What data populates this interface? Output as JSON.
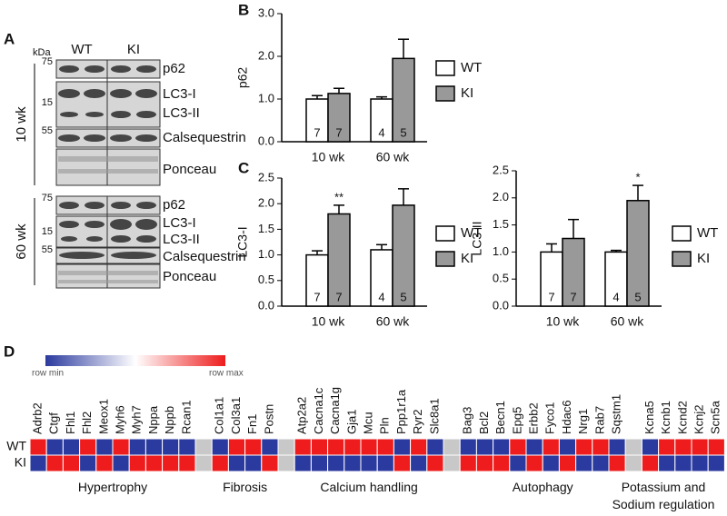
{
  "panels": [
    "A",
    "B",
    "C",
    "D"
  ],
  "blot": {
    "unit": "kDa",
    "lanes": [
      "WT",
      "KI"
    ],
    "markers": [
      "75",
      "15",
      "55",
      "75",
      "15",
      "55"
    ],
    "ages": [
      "10 wk",
      "60 wk"
    ],
    "bands": [
      "p62",
      "LC3-I",
      "LC3-II",
      "Calsequestrin",
      "Ponceau",
      "p62",
      "LC3-I",
      "LC3-II",
      "Calsequestrin",
      "Ponceau"
    ]
  },
  "chart_data": [
    {
      "type": "bar",
      "ylabel": "p62",
      "categories": [
        "10 wk",
        "60 wk"
      ],
      "ylim": [
        0,
        3
      ],
      "yticks": [
        {
          "value": 0,
          "label": "0.0"
        },
        {
          "value": 1,
          "label": "1.0"
        },
        {
          "value": 2,
          "label": "2.0"
        },
        {
          "value": 3,
          "label": "3.0"
        }
      ],
      "series": [
        {
          "name": "WT",
          "color": "#ffffff",
          "values": [
            1.0,
            1.0
          ],
          "errors": [
            0.08,
            0.05
          ],
          "n": [
            7,
            4
          ],
          "sig": [
            null,
            null
          ]
        },
        {
          "name": "KI",
          "color": "#999999",
          "values": [
            1.13,
            1.95
          ],
          "errors": [
            0.12,
            0.45
          ],
          "n": [
            7,
            5
          ],
          "sig": [
            null,
            null
          ]
        }
      ]
    },
    {
      "type": "bar",
      "ylabel": "LC3-I",
      "categories": [
        "10 wk",
        "60 wk"
      ],
      "ylim": [
        0,
        2.5
      ],
      "yticks": [
        {
          "value": 0,
          "label": "0.0"
        },
        {
          "value": 0.5,
          "label": "0.5"
        },
        {
          "value": 1,
          "label": "1.0"
        },
        {
          "value": 1.5,
          "label": "1.5"
        },
        {
          "value": 2,
          "label": "2.0"
        },
        {
          "value": 2.5,
          "label": "2.5"
        }
      ],
      "series": [
        {
          "name": "WT",
          "color": "#ffffff",
          "values": [
            1.0,
            1.1
          ],
          "errors": [
            0.08,
            0.1
          ],
          "n": [
            7,
            4
          ],
          "sig": [
            null,
            null
          ]
        },
        {
          "name": "KI",
          "color": "#999999",
          "values": [
            1.8,
            1.97
          ],
          "errors": [
            0.17,
            0.32
          ],
          "n": [
            7,
            5
          ],
          "sig": [
            "**",
            null
          ]
        }
      ]
    },
    {
      "type": "bar",
      "ylabel": "LC3-II",
      "categories": [
        "10 wk",
        "60 wk"
      ],
      "ylim": [
        0,
        2.5
      ],
      "yticks": [
        {
          "value": 0,
          "label": "0.0"
        },
        {
          "value": 0.5,
          "label": "0.5"
        },
        {
          "value": 1,
          "label": "1.0"
        },
        {
          "value": 1.5,
          "label": "1.5"
        },
        {
          "value": 2,
          "label": "2.0"
        },
        {
          "value": 2.5,
          "label": "2.5"
        }
      ],
      "series": [
        {
          "name": "WT",
          "color": "#ffffff",
          "values": [
            1.0,
            1.0
          ],
          "errors": [
            0.15,
            0.03
          ],
          "n": [
            7,
            4
          ],
          "sig": [
            null,
            null
          ]
        },
        {
          "name": "KI",
          "color": "#999999",
          "values": [
            1.25,
            1.95
          ],
          "errors": [
            0.35,
            0.28
          ],
          "n": [
            7,
            5
          ],
          "sig": [
            null,
            "*"
          ]
        }
      ]
    }
  ],
  "heatmap": {
    "scale_labels": [
      "row min",
      "row max"
    ],
    "colors": [
      "#2b3a9e",
      "#ee1c1c"
    ],
    "rows": [
      "WT",
      "KI"
    ],
    "groups": [
      {
        "name": "Hypertrophy",
        "genes": [
          "Adrb2",
          "Ctgf",
          "Fhl1",
          "Fhl2",
          "Meox1",
          "Myh6",
          "Myh7",
          "Nppa",
          "Nppb",
          "Rcan1"
        ],
        "values": [
          [
            1,
            0,
            0,
            1,
            0,
            1,
            0,
            0,
            0,
            0
          ],
          [
            0,
            1,
            1,
            0,
            1,
            0,
            1,
            1,
            1,
            1
          ]
        ]
      },
      {
        "name": "Fibrosis",
        "genes": [
          "Col1a1",
          "Col3a1",
          "Fn1",
          "Postn"
        ],
        "values": [
          [
            0,
            1,
            1,
            0
          ],
          [
            1,
            0,
            0,
            1
          ]
        ]
      },
      {
        "name": "Calcium handling",
        "genes": [
          "Atp2a2",
          "Cacna1c",
          "Cacna1g",
          "Gja1",
          "Mcu",
          "Pln",
          "Ppp1r1a",
          "Ryr2",
          "Slc8a1"
        ],
        "values": [
          [
            1,
            1,
            1,
            1,
            1,
            1,
            0,
            1,
            0
          ],
          [
            0,
            0,
            0,
            0,
            0,
            0,
            1,
            0,
            1
          ]
        ]
      },
      {
        "name": "Autophagy",
        "genes": [
          "Bag3",
          "Bcl2",
          "Becn1",
          "Epg5",
          "Erbb2",
          "Fyco1",
          "Hdac6",
          "Nrg1",
          "Rab7",
          "Sqstm1"
        ],
        "values": [
          [
            0,
            0,
            0,
            1,
            0,
            1,
            0,
            1,
            1,
            0
          ],
          [
            1,
            1,
            1,
            0,
            1,
            0,
            1,
            0,
            0,
            1
          ]
        ]
      },
      {
        "name": "Potassium and Sodium regulation",
        "genes": [
          "Kcna5",
          "Kcnb1",
          "Kcnd2",
          "Kcnj2",
          "Scn5a"
        ],
        "values": [
          [
            0,
            1,
            1,
            1,
            1
          ],
          [
            1,
            0,
            0,
            0,
            0
          ]
        ]
      }
    ]
  }
}
